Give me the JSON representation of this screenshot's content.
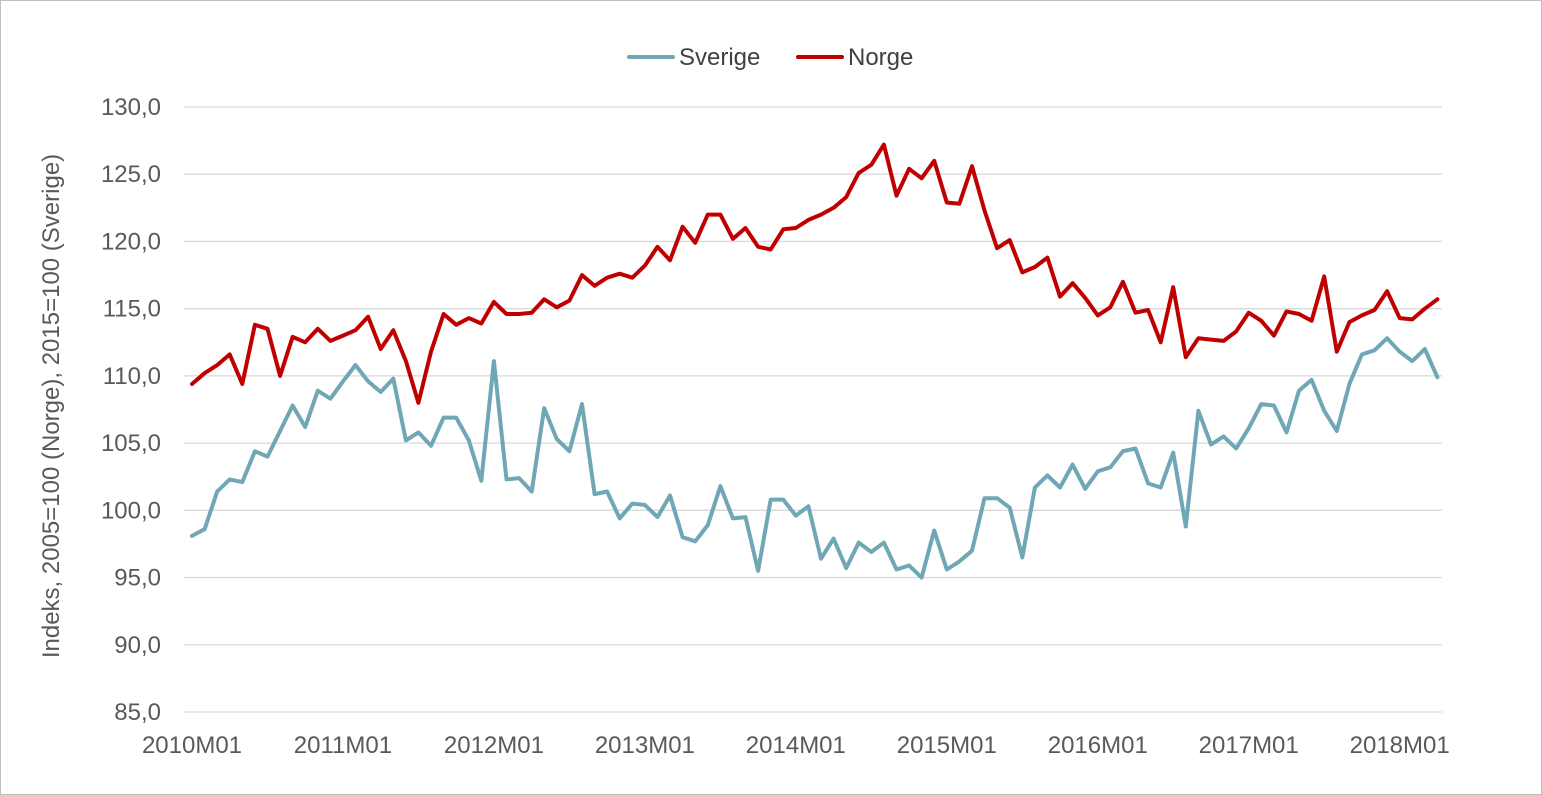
{
  "chart_data": {
    "type": "line",
    "title": "",
    "xlabel": "",
    "ylabel": "Indeks, 2005=100 (Norge), 2015=100 (Sverige)",
    "ylim": [
      85,
      130
    ],
    "ytick_step": 5,
    "ytick_labels": [
      "85,0",
      "90,0",
      "95,0",
      "100,0",
      "105,0",
      "110,0",
      "115,0",
      "120,0",
      "125,0",
      "130,0"
    ],
    "xtick_labels": [
      "2010M01",
      "2011M01",
      "2012M01",
      "2013M01",
      "2014M01",
      "2015M01",
      "2016M01",
      "2017M01",
      "2018M01"
    ],
    "x_start": "2010M01",
    "x_end": "2018M04",
    "grid": true,
    "legend_position": "top",
    "series": [
      {
        "name": "Sverige",
        "color": "#6fa7b6",
        "values": [
          98.1,
          98.6,
          101.4,
          102.3,
          102.1,
          104.4,
          104.0,
          105.9,
          107.8,
          106.2,
          108.9,
          108.3,
          109.6,
          110.8,
          109.6,
          108.8,
          109.8,
          105.2,
          105.8,
          104.8,
          106.9,
          106.9,
          105.2,
          102.2,
          111.1,
          102.3,
          102.4,
          101.4,
          107.6,
          105.3,
          104.4,
          107.9,
          101.2,
          101.4,
          99.4,
          100.5,
          100.4,
          99.5,
          101.1,
          98.0,
          97.7,
          98.9,
          101.8,
          99.4,
          99.5,
          95.5,
          100.8,
          100.8,
          99.6,
          100.3,
          96.4,
          97.9,
          95.7,
          97.6,
          96.9,
          97.6,
          95.6,
          95.9,
          95.0,
          98.5,
          95.6,
          96.2,
          97.0,
          100.9,
          100.9,
          100.2,
          96.5,
          101.7,
          102.6,
          101.7,
          103.4,
          101.6,
          102.9,
          103.2,
          104.4,
          104.6,
          102.0,
          101.7,
          104.3,
          98.8,
          107.4,
          104.9,
          105.5,
          104.6,
          106.1,
          107.9,
          107.8,
          105.8,
          108.9,
          109.7,
          107.4,
          105.9,
          109.4,
          111.6,
          111.9,
          112.8,
          111.8,
          111.1,
          112.0,
          109.9
        ]
      },
      {
        "name": "Norge",
        "color": "#c00000",
        "values": [
          109.4,
          110.2,
          110.8,
          111.6,
          109.4,
          113.8,
          113.5,
          110.0,
          112.9,
          112.5,
          113.5,
          112.6,
          113.0,
          113.4,
          114.4,
          112.0,
          113.4,
          111.1,
          108.0,
          111.8,
          114.6,
          113.8,
          114.3,
          113.9,
          115.5,
          114.6,
          114.6,
          114.7,
          115.7,
          115.1,
          115.6,
          117.5,
          116.7,
          117.3,
          117.6,
          117.3,
          118.2,
          119.6,
          118.6,
          121.1,
          119.9,
          122.0,
          122.0,
          120.2,
          121.0,
          119.6,
          119.4,
          120.9,
          121.0,
          121.6,
          122.0,
          122.5,
          123.3,
          125.1,
          125.7,
          127.2,
          123.4,
          125.4,
          124.7,
          126.0,
          122.9,
          122.8,
          125.6,
          122.3,
          119.5,
          120.1,
          117.7,
          118.1,
          118.8,
          115.9,
          116.9,
          115.8,
          114.5,
          115.1,
          117.0,
          114.7,
          114.9,
          112.5,
          116.6,
          111.4,
          112.8,
          112.7,
          112.6,
          113.3,
          114.7,
          114.1,
          113.0,
          114.8,
          114.6,
          114.1,
          117.4,
          111.8,
          114.0,
          114.5,
          114.9,
          116.3,
          114.3,
          114.2,
          115.0,
          115.7
        ]
      }
    ]
  }
}
